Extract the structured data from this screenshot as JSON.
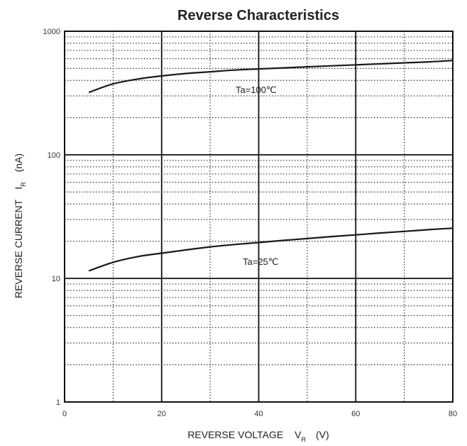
{
  "chart_data": {
    "type": "line",
    "title": "Reverse Characteristics",
    "xlabel": "REVERSE VOLTAGE",
    "xlabel_symbol": "V",
    "xlabel_subscript": "R",
    "xlabel_unit": "(V)",
    "ylabel": "REVERSE CURRENT",
    "ylabel_symbol": "I",
    "ylabel_subscript": "R",
    "ylabel_unit": "(nA)",
    "x_scale": "linear",
    "y_scale": "log",
    "xlim": [
      0,
      80
    ],
    "ylim": [
      1,
      1000
    ],
    "x_ticks": [
      "0",
      "20",
      "40",
      "60",
      "80"
    ],
    "y_ticks": [
      "1",
      "10",
      "100",
      "1000"
    ],
    "grid": true,
    "series": [
      {
        "name": "Ta=100℃",
        "x": [
          5,
          10,
          15,
          20,
          25,
          30,
          35,
          40,
          45,
          50,
          55,
          60,
          65,
          70,
          75,
          80
        ],
        "y": [
          320,
          375,
          410,
          435,
          455,
          470,
          485,
          495,
          505,
          515,
          525,
          535,
          545,
          555,
          565,
          580
        ]
      },
      {
        "name": "Ta=25℃",
        "x": [
          5,
          10,
          15,
          20,
          25,
          30,
          35,
          40,
          45,
          50,
          55,
          60,
          65,
          70,
          75,
          80
        ],
        "y": [
          11.5,
          13.5,
          15.0,
          16.0,
          17.0,
          18.0,
          18.8,
          19.5,
          20.3,
          21.0,
          21.8,
          22.5,
          23.3,
          24.0,
          24.8,
          25.5
        ]
      }
    ]
  }
}
